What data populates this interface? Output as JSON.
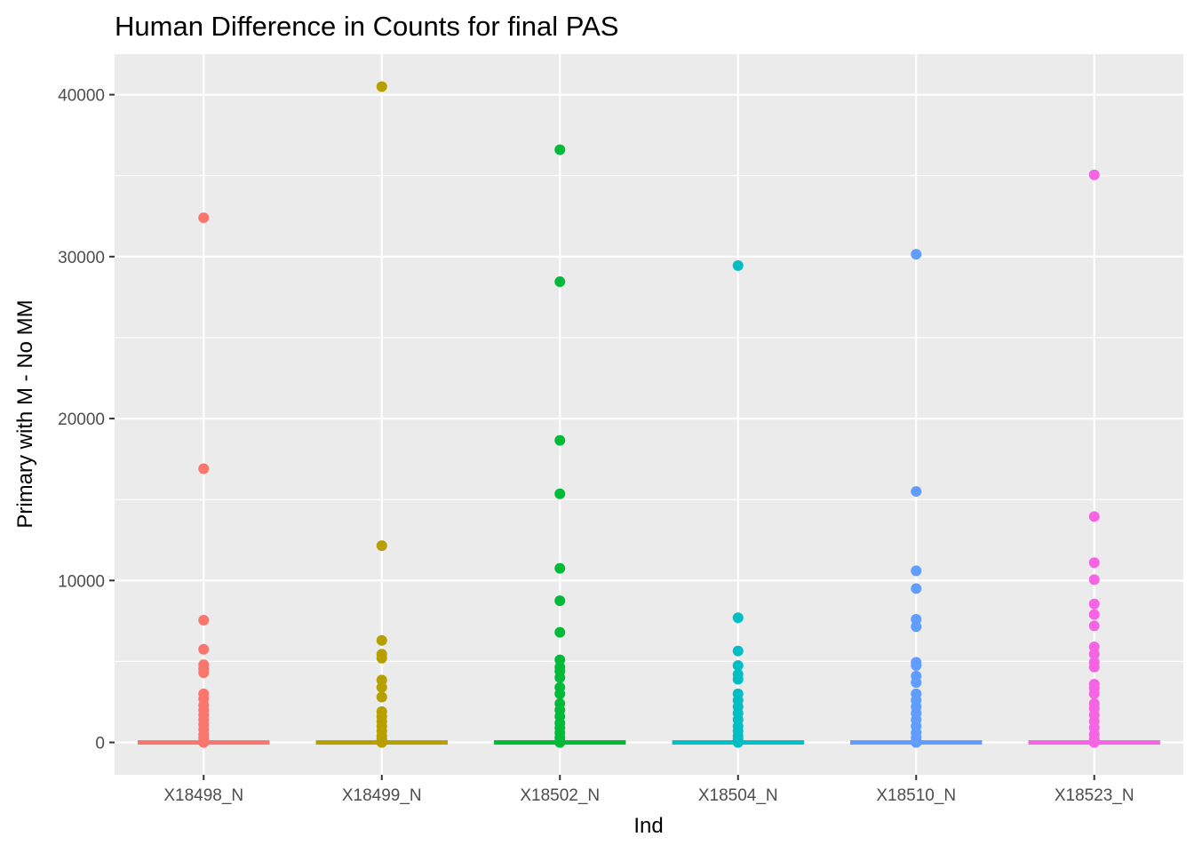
{
  "chart_data": {
    "type": "scatter",
    "title": "Human Difference in Counts for final PAS",
    "xlabel": "Ind",
    "ylabel": "Primary with M - No MM",
    "categories": [
      "X18498_N",
      "X18499_N",
      "X18502_N",
      "X18504_N",
      "X18510_N",
      "X18523_N"
    ],
    "yticks": [
      "0",
      "10000",
      "20000",
      "30000",
      "40000"
    ],
    "ylim": [
      -2000,
      42500
    ],
    "grid": true,
    "legend": "none",
    "series": [
      {
        "category": "X18498_N",
        "color": "#F8766D",
        "values": [
          32400,
          16900,
          7550,
          5750,
          4800,
          4550,
          4300,
          3000,
          2700,
          2300,
          2000,
          1700,
          1400,
          1100,
          800,
          500,
          300,
          100,
          0,
          0
        ]
      },
      {
        "category": "X18499_N",
        "color": "#B79F00",
        "values": [
          40500,
          12150,
          6300,
          5450,
          5200,
          3850,
          3400,
          2800,
          1900,
          1600,
          1300,
          1000,
          700,
          400,
          200,
          50,
          0,
          0
        ]
      },
      {
        "category": "X18502_N",
        "color": "#00BA38",
        "values": [
          36600,
          28450,
          18650,
          15350,
          10750,
          8750,
          6800,
          5100,
          4650,
          4400,
          4000,
          3400,
          3000,
          2400,
          2000,
          1600,
          1200,
          900,
          600,
          300,
          100,
          0,
          0
        ]
      },
      {
        "category": "X18504_N",
        "color": "#00BFC4",
        "values": [
          29450,
          7700,
          5650,
          4750,
          4200,
          3900,
          3000,
          2600,
          2200,
          1800,
          1400,
          1000,
          700,
          400,
          200,
          0,
          0
        ]
      },
      {
        "category": "X18510_N",
        "color": "#619CFF",
        "values": [
          30150,
          15500,
          10600,
          9500,
          7600,
          7150,
          4950,
          4750,
          4100,
          3700,
          3000,
          2600,
          2200,
          1800,
          1400,
          1000,
          600,
          300,
          100,
          0,
          0
        ]
      },
      {
        "category": "X18523_N",
        "color": "#F564E3",
        "values": [
          35050,
          13950,
          11100,
          10050,
          8550,
          7900,
          7200,
          5900,
          5450,
          4950,
          4650,
          3600,
          3350,
          3000,
          2400,
          2100,
          1700,
          1300,
          900,
          500,
          200,
          0,
          0
        ]
      }
    ]
  }
}
